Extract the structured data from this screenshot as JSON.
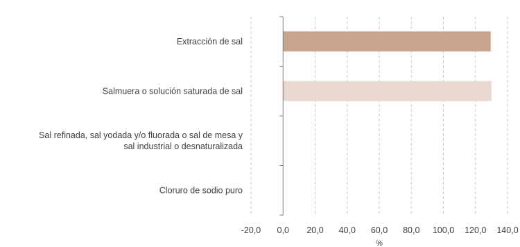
{
  "chart_data": {
    "type": "bar",
    "orientation": "horizontal",
    "categories": [
      [
        "Extracción de sal"
      ],
      [
        "Salmuera o solución saturada de sal"
      ],
      [
        "Sal refinada, sal yodada y/o fluorada o sal de mesa y",
        "sal industrial o desnaturalizada"
      ],
      [
        "Cloruro de sodio puro"
      ]
    ],
    "values": [
      129.5,
      130.0,
      0,
      0
    ],
    "bar_colors": [
      "#c9a48e",
      "#ead9cf",
      "#c9a48e",
      "#c9a48e"
    ],
    "xlim": [
      -20,
      140
    ],
    "xticks": [
      "-20,0",
      "0,0",
      "20,0",
      "40,0",
      "60,0",
      "80,0",
      "100,0",
      "120,0",
      "140,0"
    ],
    "xlabel": "%",
    "grid": "vertical dashed",
    "colors": {
      "gridline": "#c8c8c8",
      "axis": "#7f7f7f",
      "text": "#404040"
    }
  }
}
